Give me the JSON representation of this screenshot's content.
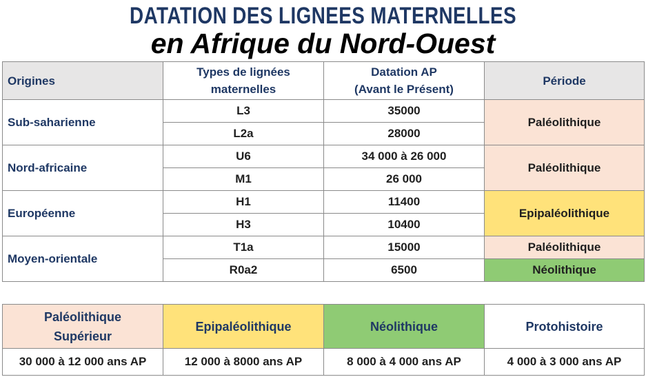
{
  "title": {
    "line1": "DATATION DES LIGNEES MATERNELLES",
    "line2": "en Afrique du Nord-Ouest"
  },
  "table": {
    "headers": {
      "origins": "Origines",
      "types_line1": "Types de lignées",
      "types_line2": "maternelles",
      "dating_line1": "Datation AP",
      "dating_line2": "(Avant le Présent)",
      "period": "Période"
    },
    "groups": [
      {
        "origin": "Sub-saharienne",
        "rows": [
          {
            "type": "L3",
            "dating": "35000"
          },
          {
            "type": "L2a",
            "dating": "28000"
          }
        ],
        "periods": [
          {
            "label": "Paléolithique",
            "color": "#fbe3d5"
          }
        ]
      },
      {
        "origin": "Nord-africaine",
        "rows": [
          {
            "type": "U6",
            "dating": "34 000 à 26 000"
          },
          {
            "type": "M1",
            "dating": "26 000"
          }
        ],
        "periods": [
          {
            "label": "Paléolithique",
            "color": "#fbe3d5"
          }
        ]
      },
      {
        "origin": "Européenne",
        "rows": [
          {
            "type": "H1",
            "dating": "11400"
          },
          {
            "type": "H3",
            "dating": "10400"
          }
        ],
        "periods": [
          {
            "label": "Epipaléolithique",
            "color": "#ffe27a"
          }
        ]
      },
      {
        "origin": "Moyen-orientale",
        "rows": [
          {
            "type": "T1a",
            "dating": "15000"
          },
          {
            "type": "R0a2",
            "dating": "6500"
          }
        ],
        "periods": [
          {
            "label": "Paléolithique",
            "color": "#fbe3d5"
          },
          {
            "label": "Néolithique",
            "color": "#8fcb74"
          }
        ]
      }
    ]
  },
  "legend": [
    {
      "name_line1": "Paléolithique",
      "name_line2": "Supérieur",
      "range": "30 000 à 12 000 ans AP",
      "color": "#fbe3d5"
    },
    {
      "name_line1": "Epipaléolithique",
      "name_line2": "",
      "range": "12 000 à 8000  ans AP",
      "color": "#ffe27a"
    },
    {
      "name_line1": "Néolithique",
      "name_line2": "",
      "range": "8 000 à 4 000 ans AP",
      "color": "#8fcb74"
    },
    {
      "name_line1": "Protohistoire",
      "name_line2": "",
      "range": "4 000 à 3 000 ans AP",
      "color": "#ffffff"
    }
  ]
}
